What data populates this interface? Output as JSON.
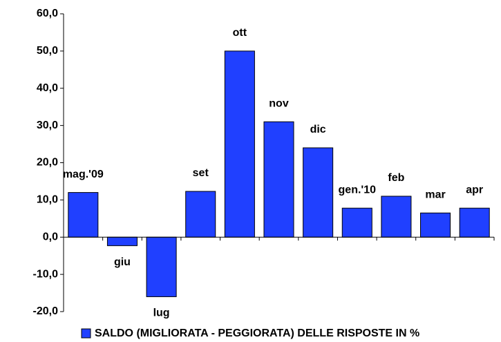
{
  "chart_data": {
    "type": "bar",
    "categories": [
      "mag.'09",
      "giu",
      "lug",
      "set",
      "ott",
      "nov",
      "dic",
      "gen.'10",
      "feb",
      "mar",
      "apr"
    ],
    "series": [
      {
        "name": "SALDO (MIGLIORATA - PEGGIORATA) DELLE RISPOSTE IN %",
        "color": "#2040ff",
        "values": [
          12,
          -2.3,
          -16,
          12.3,
          50,
          31,
          24,
          7.8,
          11,
          6.5,
          7.8
        ]
      }
    ],
    "ylim": [
      -20,
      60
    ],
    "yticks": [
      {
        "value": -20,
        "label": "-20,0"
      },
      {
        "value": -10,
        "label": "-10,0"
      },
      {
        "value": 0,
        "label": "0,0"
      },
      {
        "value": 10,
        "label": "10,0"
      },
      {
        "value": 20,
        "label": "20,0"
      },
      {
        "value": 30,
        "label": "30,0"
      },
      {
        "value": 40,
        "label": "40,0"
      },
      {
        "value": 50,
        "label": "50,0"
      },
      {
        "value": 60,
        "label": "60,0"
      }
    ],
    "grid": false,
    "legend": "bottom"
  }
}
